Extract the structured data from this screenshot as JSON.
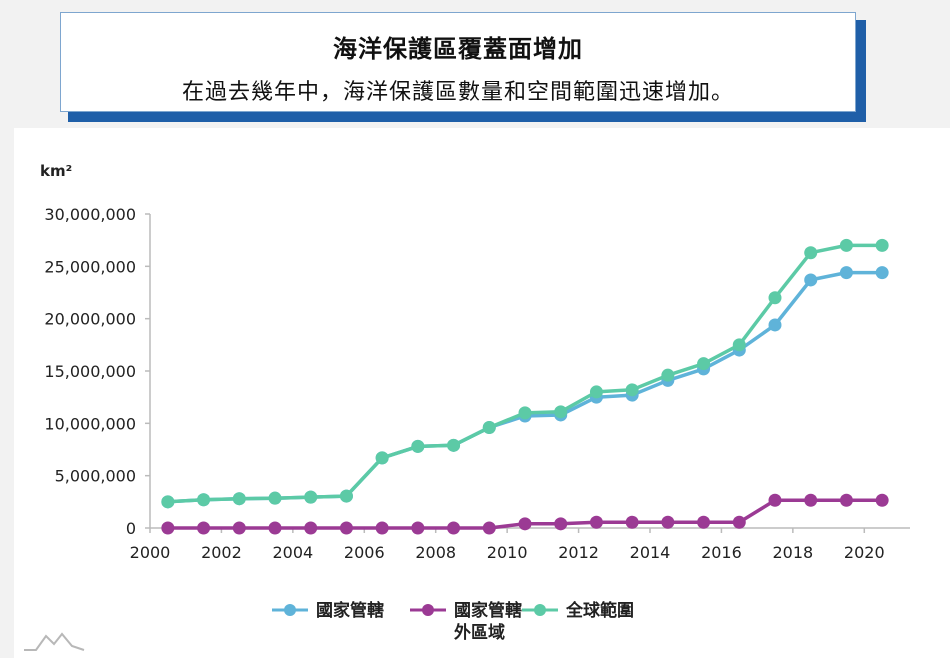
{
  "header": {
    "title": "海洋保護區覆蓋面增加",
    "subtitle": "在過去幾年中，海洋保護區數量和空間範圍迅速增加。"
  },
  "colors": {
    "national": "#5fb3d9",
    "abnj": "#9b3a94",
    "global": "#5ccaa6",
    "axis": "#bbbbbb",
    "title_shadow": "#1f5fa8"
  },
  "chart_data": {
    "type": "line",
    "ylabel": "km²",
    "ylim": [
      0,
      30000000
    ],
    "xlim": [
      2000,
      2021
    ],
    "y_ticks": [
      0,
      5000000,
      10000000,
      15000000,
      20000000,
      25000000,
      30000000
    ],
    "y_tick_labels": [
      "0",
      "5,000,000",
      "10,000,000",
      "15,000,000",
      "20,000,000",
      "25,000,000",
      "30,000,000"
    ],
    "x_ticks": [
      2000,
      2002,
      2004,
      2006,
      2008,
      2010,
      2012,
      2014,
      2016,
      2018,
      2020
    ],
    "x_tick_labels": [
      "2000",
      "2002",
      "2004",
      "2006",
      "2008",
      "2010",
      "2012",
      "2014",
      "2016",
      "2018",
      "2020"
    ],
    "x": [
      2000.5,
      2001.5,
      2002.5,
      2003.5,
      2004.5,
      2005.5,
      2006.5,
      2007.5,
      2008.5,
      2009.5,
      2010.5,
      2011.5,
      2012.5,
      2013.5,
      2014.5,
      2015.5,
      2016.5,
      2017.5,
      2018.5,
      2019.5,
      2020.5
    ],
    "series": [
      {
        "name": "國家管轄",
        "color_key": "national",
        "values": [
          2500000,
          2700000,
          2800000,
          2850000,
          2950000,
          3050000,
          6700000,
          7800000,
          7900000,
          9600000,
          10700000,
          10800000,
          12500000,
          12700000,
          14100000,
          15200000,
          17000000,
          19400000,
          23700000,
          24400000,
          24400000
        ]
      },
      {
        "name": "國家管轄外區域",
        "color_key": "abnj",
        "values": [
          0,
          0,
          0,
          0,
          0,
          0,
          0,
          0,
          0,
          0,
          400000,
          400000,
          550000,
          550000,
          550000,
          550000,
          550000,
          2650000,
          2650000,
          2650000,
          2650000
        ]
      },
      {
        "name": "全球範圍",
        "color_key": "global",
        "values": [
          2500000,
          2700000,
          2800000,
          2850000,
          2950000,
          3050000,
          6700000,
          7800000,
          7900000,
          9600000,
          11000000,
          11100000,
          13000000,
          13200000,
          14600000,
          15700000,
          17500000,
          22000000,
          26300000,
          27000000,
          27000000
        ]
      }
    ],
    "legend": [
      {
        "label_lines": [
          "國家管轄"
        ],
        "color_key": "national"
      },
      {
        "label_lines": [
          "國家管轄",
          "外區域"
        ],
        "color_key": "abnj"
      },
      {
        "label_lines": [
          "全球範圍"
        ],
        "color_key": "global"
      }
    ],
    "grid": false,
    "legend_position": "bottom"
  }
}
